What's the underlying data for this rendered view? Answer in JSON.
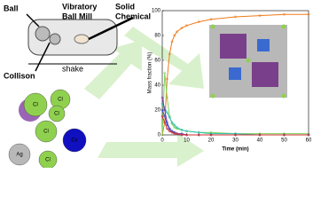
{
  "diagram": {
    "ball": "Ball",
    "mill": [
      "Vibratory",
      "Ball Mill"
    ],
    "solid": [
      "Solid",
      "Chemical"
    ],
    "collision": "Collison",
    "shake": "shake",
    "atoms": [
      {
        "label": "Cl",
        "color": "#8fd14f"
      },
      {
        "label": "Cl",
        "color": "#8fd14f"
      },
      {
        "label": "Cl",
        "color": "#8fd14f"
      },
      {
        "label": "Cl",
        "color": "#8fd14f"
      },
      {
        "label": "Cs",
        "color": "#1010c0"
      },
      {
        "label": "Ag",
        "color": "#b8b8b8"
      },
      {
        "label": "Cl",
        "color": "#8fd14f"
      }
    ]
  },
  "chart_data": {
    "type": "line",
    "xlabel": "Time (min)",
    "ylabel": "Mass fraction (%)",
    "x": [
      0,
      1,
      2,
      3,
      4,
      5,
      6,
      8,
      10,
      15,
      20,
      30,
      40,
      50,
      60
    ],
    "series": [
      {
        "name": "orange",
        "color": "#f07a1a",
        "values": [
          0,
          10,
          45,
          65,
          75,
          80,
          83,
          86,
          88,
          91,
          93,
          95,
          96,
          97,
          97
        ]
      },
      {
        "name": "green",
        "color": "#7ad35a",
        "values": [
          0,
          50,
          30,
          15,
          9,
          6,
          5,
          4,
          3,
          2,
          2,
          1,
          1,
          1,
          1
        ]
      },
      {
        "name": "teal",
        "color": "#30c0b0",
        "values": [
          25,
          22,
          18,
          14,
          10,
          8,
          6,
          4,
          3,
          2,
          1,
          1,
          0,
          0,
          0
        ]
      },
      {
        "name": "purple",
        "color": "#7a3aa0",
        "values": [
          30,
          20,
          10,
          5,
          3,
          2,
          1,
          1,
          0,
          0,
          0,
          0,
          0,
          0,
          0
        ]
      },
      {
        "name": "blue",
        "color": "#3050d0",
        "values": [
          20,
          15,
          8,
          5,
          3,
          2,
          1,
          0,
          0,
          0,
          0,
          0,
          0,
          0,
          0
        ]
      },
      {
        "name": "red",
        "color": "#d03030",
        "values": [
          15,
          10,
          5,
          3,
          2,
          1,
          1,
          0,
          0,
          0,
          0,
          0,
          0,
          0,
          0
        ]
      }
    ],
    "xlim": [
      0,
      60
    ],
    "ylim": [
      0,
      100
    ],
    "xticks": [
      0,
      10,
      20,
      30,
      40,
      50,
      60
    ],
    "yticks": [
      0,
      20,
      40,
      60,
      80,
      100
    ]
  }
}
